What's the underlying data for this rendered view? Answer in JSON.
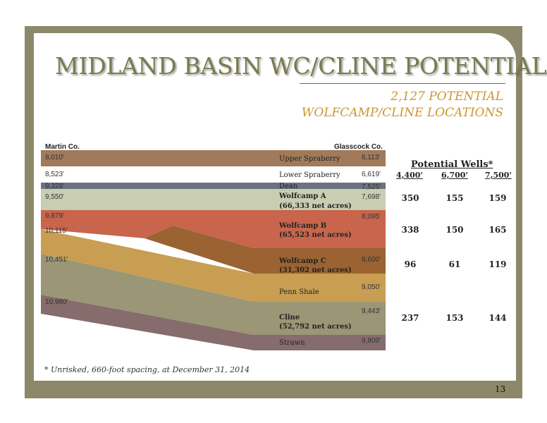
{
  "title": "MIDLAND BASIN WC/CLINE POTENTIAL",
  "subtitle_line1": "2,127 POTENTIAL",
  "subtitle_line2": "WOLFCAMP/CLINE LOCATIONS",
  "diagram": {
    "left_county": "Martin Co.",
    "right_county": "Glasscock Co.",
    "formations": [
      {
        "name": "Upper Spraberry",
        "acres": "",
        "left_depth": "8,010'",
        "right_depth": "6,113'",
        "color": "#a07a5a"
      },
      {
        "name": "Lower Spraberry",
        "acres": "",
        "left_depth": "8,523'",
        "right_depth": "6,619'",
        "color": "#ffffff"
      },
      {
        "name": "Dean",
        "acres": "",
        "left_depth": "9,328'",
        "right_depth": "7,525'",
        "color": "#6c7280"
      },
      {
        "name": "Wolfcamp A",
        "acres": "(66,333 net acres)",
        "left_depth": "9,550'",
        "right_depth": "7,698'",
        "color": "#c9ceb2"
      },
      {
        "name": "Wolfcamp B",
        "acres": "(65,523 net acres)",
        "left_depth": "9,879'",
        "right_depth": "8,095'",
        "color": "#c8654c"
      },
      {
        "name": "Wolfcamp C",
        "acres": "(31,302 net acres)",
        "left_depth": "10,115'",
        "right_depth": "8,600'",
        "color": "#9a6331"
      },
      {
        "name": "Penn Shale",
        "acres": "",
        "left_depth": "",
        "right_depth": "9,050'",
        "color": "#c89e52"
      },
      {
        "name": "Cline",
        "acres": "(52,792 net acres)",
        "left_depth": "10,451'",
        "right_depth": "9,443'",
        "color": "#9a9676"
      },
      {
        "name": "Strawn",
        "acres": "",
        "left_depth": "10,980'",
        "right_depth": "9,800'",
        "color": "#866c6c"
      }
    ]
  },
  "wells": {
    "title": "Potential Wells*",
    "columns": [
      "4,400'",
      "6,700'",
      "7,500'"
    ],
    "rows": [
      {
        "formation": "Wolfcamp A",
        "values": [
          "350",
          "155",
          "159"
        ]
      },
      {
        "formation": "Wolfcamp B",
        "values": [
          "338",
          "150",
          "165"
        ]
      },
      {
        "formation": "Wolfcamp C",
        "values": [
          "96",
          "61",
          "119"
        ]
      },
      {
        "formation": "Cline",
        "values": [
          "237",
          "153",
          "144"
        ]
      }
    ]
  },
  "footnote": "* Unrisked, 660-foot spacing, at December 31, 2014",
  "page_number": "13",
  "colors": {
    "frame": "#8c8869",
    "title": "#7a7a52",
    "subtitle": "#c8972f",
    "rule": "#c0463c"
  }
}
